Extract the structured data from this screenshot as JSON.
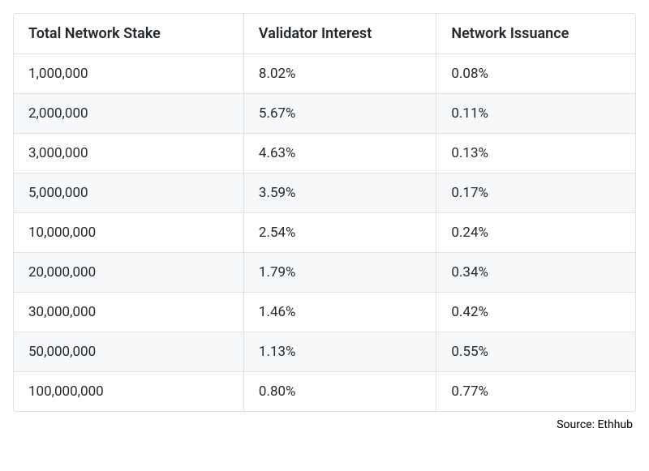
{
  "table": {
    "type": "table",
    "background_color": "#ffffff",
    "alt_row_color": "#f6f8fa",
    "border_color": "#dfe2e5",
    "text_color": "#24292e",
    "header_fontsize": 18,
    "cell_fontsize": 17,
    "header_fontweight": 600,
    "column_widths_pct": [
      37,
      31,
      32
    ],
    "columns": [
      "Total Network Stake",
      "Validator Interest",
      "Network Issuance"
    ],
    "rows": [
      [
        "1,000,000",
        "8.02%",
        "0.08%"
      ],
      [
        "2,000,000",
        "5.67%",
        "0.11%"
      ],
      [
        "3,000,000",
        "4.63%",
        "0.13%"
      ],
      [
        "5,000,000",
        "3.59%",
        "0.17%"
      ],
      [
        "10,000,000",
        "2.54%",
        "0.24%"
      ],
      [
        "20,000,000",
        "1.79%",
        "0.34%"
      ],
      [
        "30,000,000",
        "1.46%",
        "0.42%"
      ],
      [
        "50,000,000",
        "1.13%",
        "0.55%"
      ],
      [
        "100,000,000",
        "0.80%",
        "0.77%"
      ]
    ]
  },
  "source": {
    "label": "Source: Ethhub",
    "fontsize": 14,
    "color": "#000000"
  }
}
